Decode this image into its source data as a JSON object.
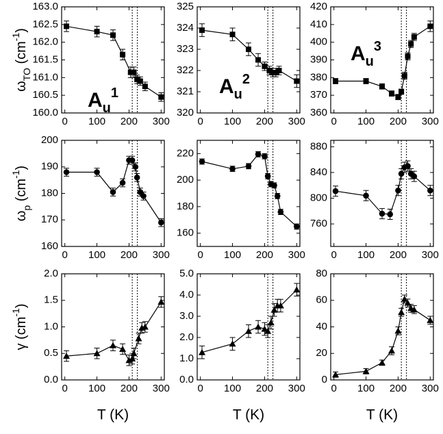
{
  "chart_data": [
    {
      "type": "line",
      "xlim": [
        -10,
        310
      ],
      "xticks": [
        0,
        100,
        200,
        300
      ],
      "ylim": [
        160,
        163
      ],
      "yticks": [
        {
          "value": 160,
          "label": "160.0"
        },
        160.5,
        {
          "value": 161,
          "label": "161.0"
        },
        161.5,
        {
          "value": 162,
          "label": "162.0"
        },
        162.5,
        {
          "value": 163,
          "label": "163.0"
        }
      ],
      "x": [
        5,
        100,
        150,
        180,
        205,
        215,
        225,
        235,
        250,
        300
      ],
      "series": [
        {
          "color": "#000000",
          "marker": "square",
          "values": [
            162.45,
            162.3,
            162.2,
            161.65,
            161.15,
            161.15,
            160.95,
            160.9,
            160.75,
            160.45
          ],
          "errors": [
            0.15,
            0.15,
            0.15,
            0.15,
            0.15,
            0.15,
            0.12,
            0.12,
            0.12,
            0.12
          ]
        }
      ],
      "vlines": [
        210,
        226
      ],
      "annotation": [
        {
          "text": "A"
        },
        {
          "text": "u",
          "shift": "sub"
        },
        {
          "text": "1",
          "shift": "sup"
        }
      ],
      "ylabel": [
        {
          "text": "ω"
        },
        {
          "text": "TO",
          "shift": "sub"
        },
        {
          "text": " (cm"
        },
        {
          "text": "-1",
          "shift": "sup"
        },
        {
          "text": ")"
        }
      ]
    },
    {
      "type": "line",
      "xlim": [
        -10,
        310
      ],
      "xticks": [
        0,
        100,
        200,
        300
      ],
      "ylim": [
        320,
        325
      ],
      "yticks": [
        320,
        321,
        322,
        323,
        324,
        325
      ],
      "x": [
        5,
        100,
        150,
        180,
        200,
        215,
        225,
        235,
        245,
        300
      ],
      "series": [
        {
          "color": "#000000",
          "marker": "square",
          "values": [
            323.9,
            323.7,
            323.0,
            322.5,
            322.2,
            322.0,
            321.9,
            321.9,
            322.0,
            321.5
          ],
          "errors": [
            0.3,
            0.3,
            0.3,
            0.3,
            0.2,
            0.2,
            0.2,
            0.2,
            0.2,
            0.3
          ]
        }
      ],
      "vlines": [
        210,
        226
      ],
      "annotation": [
        {
          "text": "A"
        },
        {
          "text": "u",
          "shift": "sub"
        },
        {
          "text": "2",
          "shift": "sup"
        }
      ]
    },
    {
      "type": "line",
      "xlim": [
        -10,
        310
      ],
      "xticks": [
        0,
        100,
        200,
        300
      ],
      "ylim": [
        360,
        420
      ],
      "yticks": [
        360,
        370,
        380,
        390,
        400,
        410,
        420
      ],
      "x": [
        5,
        100,
        150,
        180,
        200,
        210,
        220,
        230,
        240,
        250,
        300
      ],
      "series": [
        {
          "color": "#000000",
          "marker": "square",
          "values": [
            378,
            378,
            375,
            371,
            369,
            372,
            381,
            392,
            399,
            403,
            409
          ],
          "errors": [
            1.5,
            1.5,
            1.5,
            1.5,
            1.5,
            1.5,
            2,
            2,
            2,
            2,
            3
          ]
        }
      ],
      "vlines": [
        210,
        226
      ],
      "annotation": [
        {
          "text": "A"
        },
        {
          "text": "u",
          "shift": "sub"
        },
        {
          "text": "3",
          "shift": "sup"
        }
      ]
    },
    {
      "type": "line",
      "xlim": [
        -10,
        310
      ],
      "xticks": [
        0,
        100,
        200,
        300
      ],
      "ylim": [
        160,
        200
      ],
      "yticks": [
        160,
        170,
        180,
        190,
        200
      ],
      "x": [
        5,
        100,
        150,
        180,
        200,
        210,
        220,
        225,
        235,
        245,
        300
      ],
      "series": [
        {
          "color": "#000000",
          "marker": "circle",
          "values": [
            188,
            188,
            180.5,
            184,
            192.5,
            192.5,
            190,
            186,
            180.5,
            179,
            169
          ],
          "errors": [
            1.5,
            1.5,
            1.5,
            1.5,
            1.5,
            1.5,
            1.5,
            1.5,
            1.5,
            1.5,
            1.5
          ]
        }
      ],
      "vlines": [
        210,
        226
      ],
      "ylabel": [
        {
          "text": "ω"
        },
        {
          "text": "p",
          "shift": "sub"
        },
        {
          "text": " (cm"
        },
        {
          "text": "-1",
          "shift": "sup"
        },
        {
          "text": ")"
        }
      ]
    },
    {
      "type": "line",
      "xlim": [
        -10,
        310
      ],
      "xticks": [
        0,
        100,
        200,
        300
      ],
      "ylim": [
        150,
        230
      ],
      "yticks": [
        160,
        180,
        200,
        220
      ],
      "x": [
        5,
        100,
        150,
        180,
        200,
        210,
        220,
        230,
        240,
        250,
        300
      ],
      "series": [
        {
          "color": "#000000",
          "marker": "circle",
          "values": [
            214,
            208.5,
            210.5,
            219.5,
            218,
            203,
            197,
            196,
            188,
            176,
            165
          ],
          "errors": [
            2,
            2,
            2,
            2,
            2,
            2,
            2,
            2,
            2,
            2,
            2
          ]
        }
      ],
      "vlines": [
        210,
        226
      ]
    },
    {
      "type": "line",
      "xlim": [
        -10,
        310
      ],
      "xticks": [
        0,
        100,
        200,
        300
      ],
      "ylim": [
        725,
        890
      ],
      "yticks": [
        760,
        800,
        840,
        880
      ],
      "x": [
        5,
        100,
        150,
        175,
        200,
        210,
        220,
        230,
        240,
        250,
        300
      ],
      "series": [
        {
          "color": "#000000",
          "marker": "circle",
          "values": [
            811,
            804,
            776,
            775,
            812,
            838,
            848,
            850,
            838,
            834,
            812
          ],
          "errors": [
            8,
            8,
            8,
            8,
            8,
            8,
            8,
            8,
            8,
            8,
            8
          ]
        }
      ],
      "vlines": [
        210,
        226
      ]
    },
    {
      "type": "line",
      "xlim": [
        -10,
        310
      ],
      "xticks": [
        0,
        100,
        200,
        300
      ],
      "ylim": [
        0,
        2
      ],
      "yticks": [
        {
          "value": 0,
          "label": "0.0"
        },
        0.5,
        {
          "value": 1,
          "label": "1.0"
        },
        1.5,
        {
          "value": 2,
          "label": "2.0"
        }
      ],
      "x": [
        5,
        100,
        150,
        180,
        200,
        210,
        215,
        230,
        240,
        250,
        300
      ],
      "series": [
        {
          "color": "#000000",
          "marker": "triangle",
          "values": [
            0.45,
            0.5,
            0.65,
            0.58,
            0.37,
            0.4,
            0.5,
            0.78,
            0.98,
            1.0,
            1.47
          ],
          "errors": [
            0.1,
            0.1,
            0.1,
            0.1,
            0.1,
            0.1,
            0.1,
            0.1,
            0.1,
            0.1,
            0.1
          ]
        }
      ],
      "vlines": [
        210,
        226
      ],
      "xlabel": "T (K)",
      "ylabel": [
        {
          "text": "γ (cm"
        },
        {
          "text": "-1",
          "shift": "sup"
        },
        {
          "text": ")"
        }
      ]
    },
    {
      "type": "line",
      "xlim": [
        -10,
        310
      ],
      "xticks": [
        0,
        100,
        200,
        300
      ],
      "ylim": [
        0,
        5
      ],
      "yticks": [
        {
          "value": 0,
          "label": "0.0"
        },
        {
          "value": 1,
          "label": "1.0"
        },
        {
          "value": 2,
          "label": "2.0"
        },
        {
          "value": 3,
          "label": "3.0"
        },
        {
          "value": 4,
          "label": "4.0"
        },
        {
          "value": 5,
          "label": "5.0"
        }
      ],
      "x": [
        5,
        100,
        150,
        180,
        200,
        210,
        220,
        230,
        240,
        250,
        300
      ],
      "series": [
        {
          "color": "#000000",
          "marker": "triangle",
          "values": [
            1.3,
            1.7,
            2.3,
            2.5,
            2.4,
            2.3,
            2.7,
            3.3,
            3.5,
            3.5,
            4.25
          ],
          "errors": [
            0.3,
            0.3,
            0.3,
            0.3,
            0.3,
            0.3,
            0.3,
            0.3,
            0.3,
            0.3,
            0.3
          ]
        }
      ],
      "vlines": [
        210,
        226
      ],
      "xlabel": "T (K)"
    },
    {
      "type": "line",
      "xlim": [
        -10,
        310
      ],
      "xticks": [
        0,
        100,
        200,
        300
      ],
      "ylim": [
        0,
        80
      ],
      "yticks": [
        0,
        20,
        40,
        60,
        80
      ],
      "x": [
        5,
        100,
        150,
        180,
        200,
        210,
        220,
        230,
        240,
        250,
        300
      ],
      "series": [
        {
          "color": "#000000",
          "marker": "triangle",
          "values": [
            4,
            6.5,
            13,
            22,
            37,
            51,
            61,
            58,
            54,
            53,
            45
          ],
          "errors": [
            2,
            2,
            2,
            3,
            3,
            3,
            3,
            3,
            3,
            3,
            3
          ]
        }
      ],
      "vlines": [
        210,
        226
      ],
      "xlabel": "T (K)"
    }
  ]
}
